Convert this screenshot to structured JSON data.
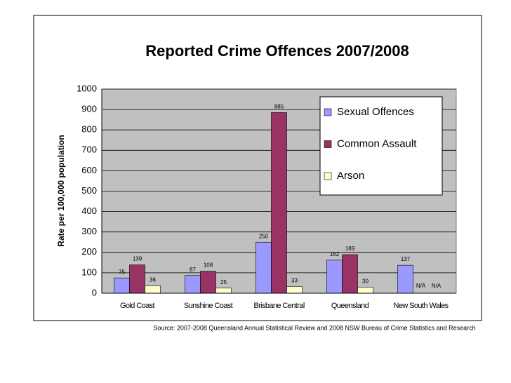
{
  "chart_data": {
    "type": "bar",
    "title": "Reported Crime Offences 2007/2008",
    "ylabel": "Rate per 100,000 population",
    "source": "Source: 2007-2008 Queensland Annual Statistical Review and 2008 NSW Bureau of Crime Statistics and Research",
    "categories": [
      "Gold Coast",
      "Sunshine Coast",
      "Brisbane Central",
      "Queensland",
      "New South Wales"
    ],
    "series": [
      {
        "name": "Sexual Offences",
        "color": "#9999ff",
        "values": [
          75,
          87,
          250,
          162,
          137
        ]
      },
      {
        "name": "Common Assault",
        "color": "#993366",
        "values": [
          139,
          108,
          885,
          189,
          null
        ],
        "value_labels": [
          null,
          null,
          null,
          null,
          "N/A"
        ]
      },
      {
        "name": "Arson",
        "color": "#ffffcc",
        "values": [
          36,
          25,
          33,
          30,
          null
        ],
        "value_labels": [
          null,
          null,
          null,
          null,
          "N/A"
        ]
      }
    ],
    "ylim": [
      0,
      1000
    ],
    "yticks": [
      0,
      100,
      200,
      300,
      400,
      500,
      600,
      700,
      800,
      900,
      1000
    ],
    "grid": true,
    "legend": "upper right"
  }
}
